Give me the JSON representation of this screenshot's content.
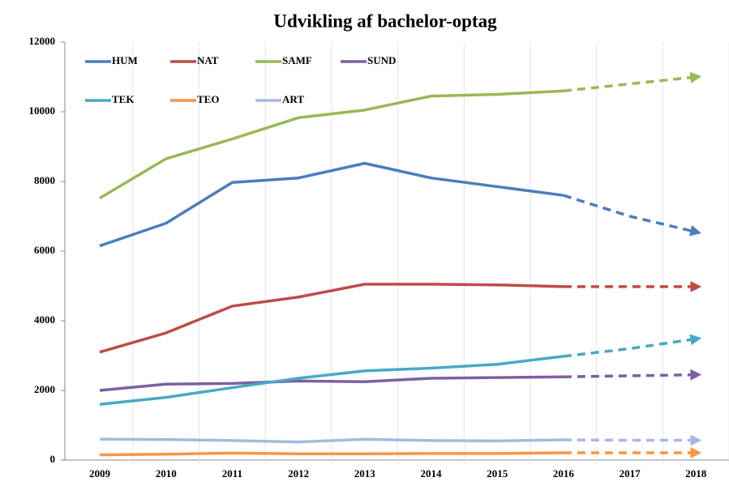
{
  "chart_data": {
    "type": "line",
    "title": "Udvikling af bachelor-optag",
    "categories": [
      "2009",
      "2010",
      "2011",
      "2012",
      "2013",
      "2014",
      "2015",
      "2016",
      "2017",
      "2018"
    ],
    "dashed_from": "2016",
    "series": [
      {
        "name": "HUM",
        "color": "#4a7ebb",
        "values": [
          6150,
          6800,
          7970,
          8100,
          8520,
          8100,
          7850,
          7600,
          7000,
          6550
        ]
      },
      {
        "name": "NAT",
        "color": "#be4b48",
        "values": [
          3100,
          3650,
          4420,
          4680,
          5050,
          5050,
          5030,
          4980,
          4980,
          4980
        ]
      },
      {
        "name": "SAMF",
        "color": "#98b954",
        "values": [
          7520,
          8650,
          9220,
          9830,
          10050,
          10450,
          10500,
          10600,
          10800,
          11000
        ]
      },
      {
        "name": "SUND",
        "color": "#7d60a0",
        "values": [
          2000,
          2180,
          2200,
          2270,
          2250,
          2350,
          2370,
          2390,
          2420,
          2450
        ]
      },
      {
        "name": "TEK",
        "color": "#46aac5",
        "values": [
          1600,
          1800,
          2080,
          2350,
          2560,
          2640,
          2750,
          2980,
          3200,
          3480
        ]
      },
      {
        "name": "TEO",
        "color": "#f79646",
        "values": [
          150,
          170,
          200,
          180,
          180,
          190,
          190,
          210,
          210,
          210
        ]
      },
      {
        "name": "ART",
        "color": "#a5b9e0",
        "values": [
          600,
          590,
          560,
          520,
          600,
          560,
          550,
          580,
          570,
          570
        ]
      }
    ],
    "ylim": [
      0,
      12000
    ],
    "yticks": [
      0,
      2000,
      4000,
      6000,
      8000,
      10000,
      12000
    ],
    "legend": "upper left"
  }
}
